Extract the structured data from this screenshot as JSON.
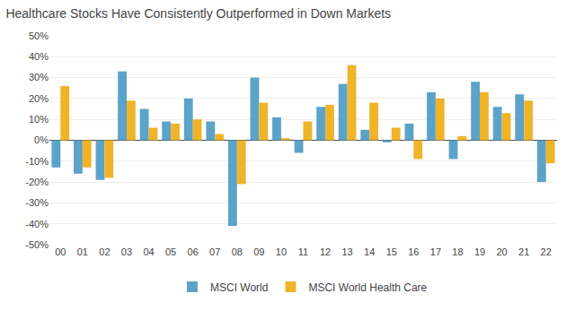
{
  "chart_data": {
    "type": "bar",
    "title": "Healthcare Stocks Have Consistently Outperformed in Down Markets",
    "categories": [
      "00",
      "01",
      "02",
      "03",
      "04",
      "05",
      "06",
      "07",
      "08",
      "09",
      "10",
      "11",
      "12",
      "13",
      "14",
      "15",
      "16",
      "17",
      "18",
      "19",
      "20",
      "21",
      "22"
    ],
    "series": [
      {
        "name": "MSCI World",
        "color": "#5ba3c9",
        "values": [
          -13,
          -16,
          -19,
          33,
          15,
          9,
          20,
          9,
          -41,
          30,
          11,
          -6,
          16,
          27,
          5,
          -1,
          8,
          23,
          -9,
          28,
          16,
          22,
          -20
        ]
      },
      {
        "name": "MSCI World Health Care",
        "color": "#f0b429",
        "values": [
          26,
          -13,
          -18,
          19,
          6,
          8,
          10,
          3,
          -21,
          18,
          1,
          9,
          17,
          36,
          18,
          6,
          -9,
          20,
          2,
          23,
          13,
          19,
          -11
        ]
      }
    ],
    "ylim": [
      -50,
      50
    ],
    "yticks": [
      {
        "value": -50,
        "label": "-50%"
      },
      {
        "value": -40,
        "label": "-40%"
      },
      {
        "value": -30,
        "label": "-30%"
      },
      {
        "value": -20,
        "label": "-20%"
      },
      {
        "value": -10,
        "label": "-10%"
      },
      {
        "value": 0,
        "label": "0%"
      },
      {
        "value": 10,
        "label": "10%"
      },
      {
        "value": 20,
        "label": "20%"
      },
      {
        "value": 30,
        "label": "30%"
      },
      {
        "value": 40,
        "label": "40%"
      },
      {
        "value": 50,
        "label": "50%"
      }
    ],
    "grid": true,
    "legend": "bottom"
  }
}
